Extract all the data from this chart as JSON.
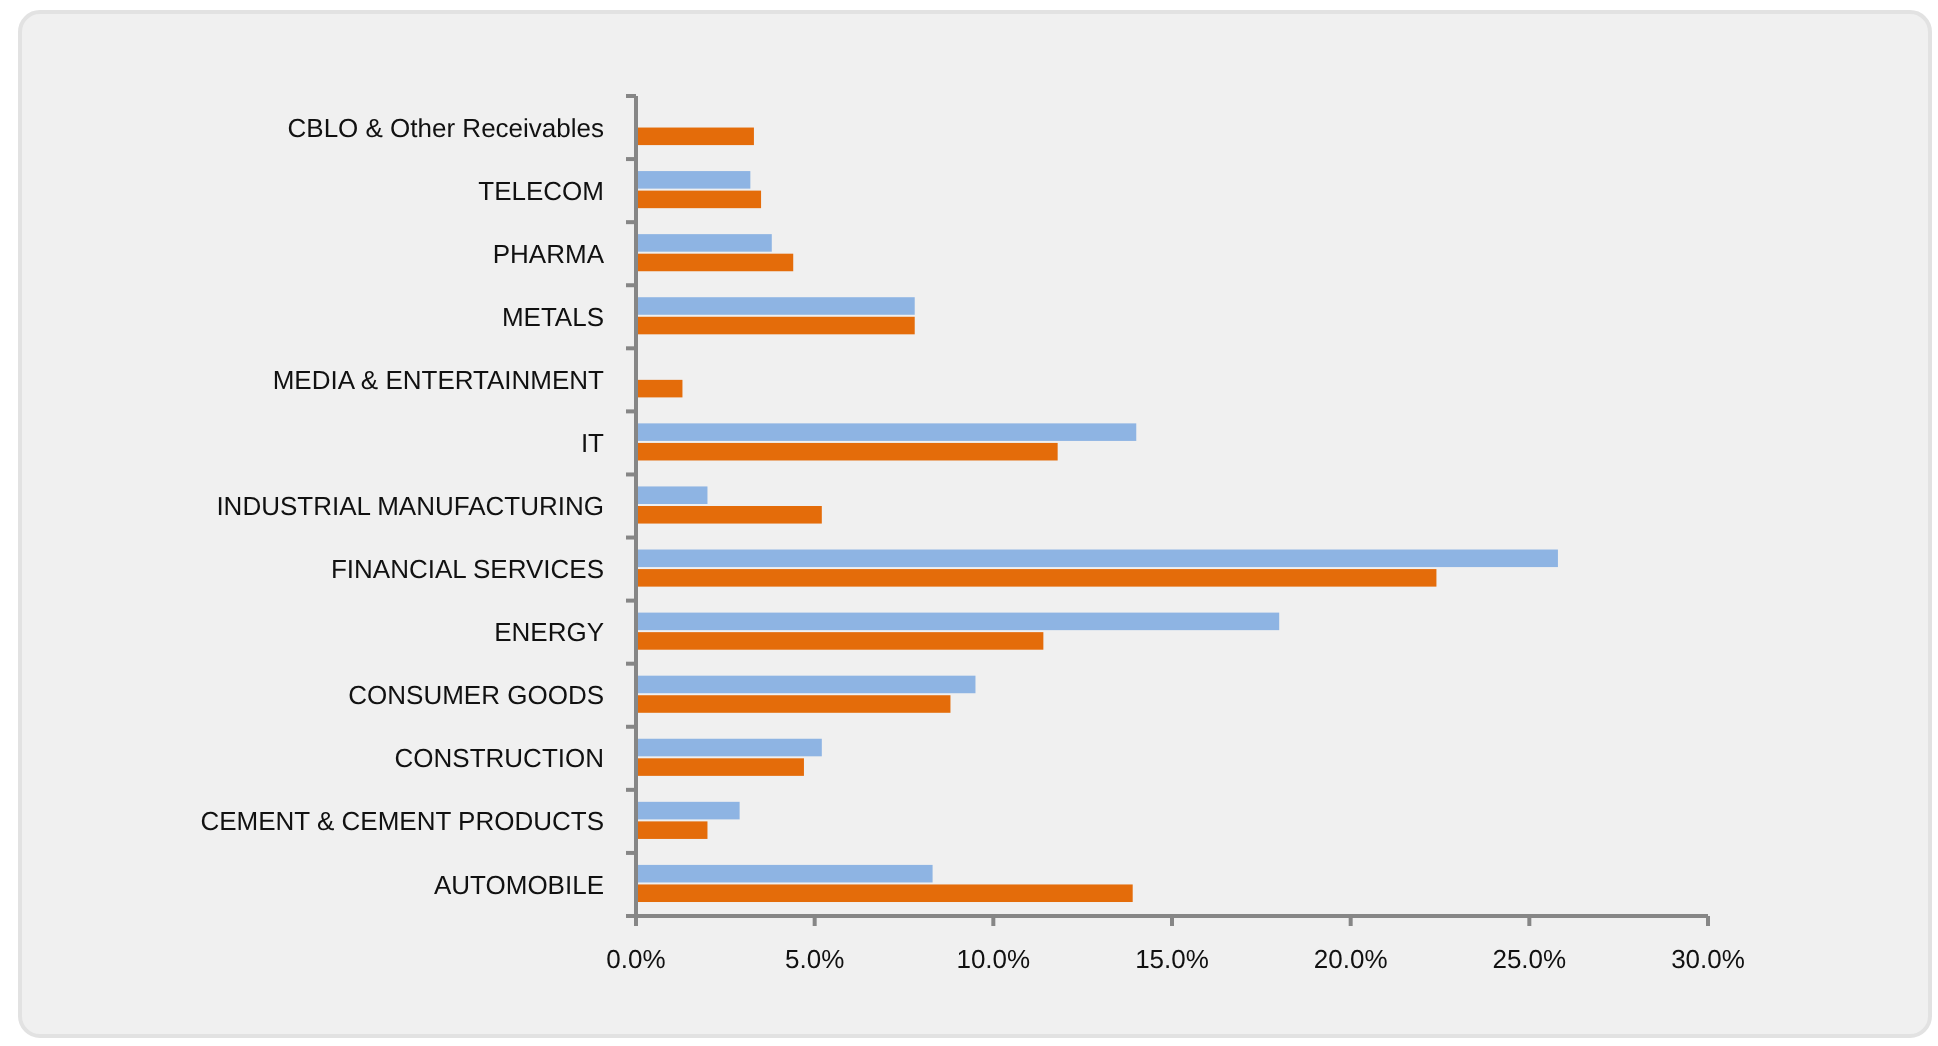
{
  "chart_data": {
    "type": "bar",
    "orientation": "horizontal",
    "categories": [
      "CBLO & Other Receivables",
      "TELECOM",
      "PHARMA",
      "METALS",
      "MEDIA & ENTERTAINMENT",
      "IT",
      "INDUSTRIAL MANUFACTURING",
      "FINANCIAL SERVICES",
      "ENERGY",
      "CONSUMER GOODS",
      "CONSTRUCTION",
      "CEMENT & CEMENT PRODUCTS",
      "AUTOMOBILE"
    ],
    "series": [
      {
        "color": "#8eb4e3",
        "values": [
          null,
          3.2,
          3.8,
          7.8,
          null,
          14.0,
          2.0,
          25.8,
          18.0,
          9.5,
          5.2,
          2.9,
          8.3
        ]
      },
      {
        "color": "#e46c0a",
        "values": [
          3.3,
          3.5,
          4.4,
          7.8,
          1.3,
          11.8,
          5.2,
          22.4,
          11.4,
          8.8,
          4.7,
          2.0,
          13.9
        ]
      }
    ],
    "xlim": [
      0,
      30
    ],
    "xticks": [
      {
        "value": 0,
        "label": "0.0%"
      },
      {
        "value": 5,
        "label": "5.0%"
      },
      {
        "value": 10,
        "label": "10.0%"
      },
      {
        "value": 15,
        "label": "15.0%"
      },
      {
        "value": 20,
        "label": "20.0%"
      },
      {
        "value": 25,
        "label": "25.0%"
      },
      {
        "value": 30,
        "label": "30.0%"
      }
    ],
    "grid": false
  }
}
